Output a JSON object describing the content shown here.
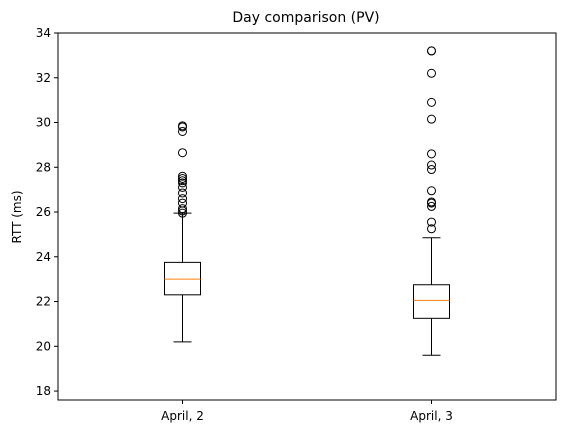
{
  "chart_data": {
    "type": "box",
    "title": "Day comparison (PV)",
    "xlabel": "",
    "ylabel": "RTT (ms)",
    "ylim": [
      17.6,
      34
    ],
    "yticks": [
      18,
      20,
      22,
      24,
      26,
      28,
      30,
      32,
      34
    ],
    "grid": false,
    "categories": [
      "April, 2",
      "April, 3"
    ],
    "boxes": [
      {
        "category": "April, 2",
        "whisker_low": 20.2,
        "q1": 22.3,
        "median": 23.0,
        "q3": 23.75,
        "whisker_high": 25.95,
        "outliers": [
          25.95,
          26.05,
          26.15,
          26.4,
          26.6,
          26.85,
          27.1,
          27.3,
          27.4,
          27.5,
          27.6,
          28.65,
          29.6,
          29.8,
          29.85
        ]
      },
      {
        "category": "April, 3",
        "whisker_low": 19.6,
        "q1": 21.25,
        "median": 22.05,
        "q3": 22.75,
        "whisker_high": 24.85,
        "outliers": [
          25.25,
          25.55,
          26.25,
          26.4,
          26.45,
          26.95,
          27.9,
          28.1,
          28.6,
          30.15,
          30.9,
          32.2,
          33.2,
          33.2
        ]
      }
    ],
    "colors": {
      "box": "#000000",
      "median": "#ff7f0e",
      "outlier_edge": "#000000"
    }
  }
}
